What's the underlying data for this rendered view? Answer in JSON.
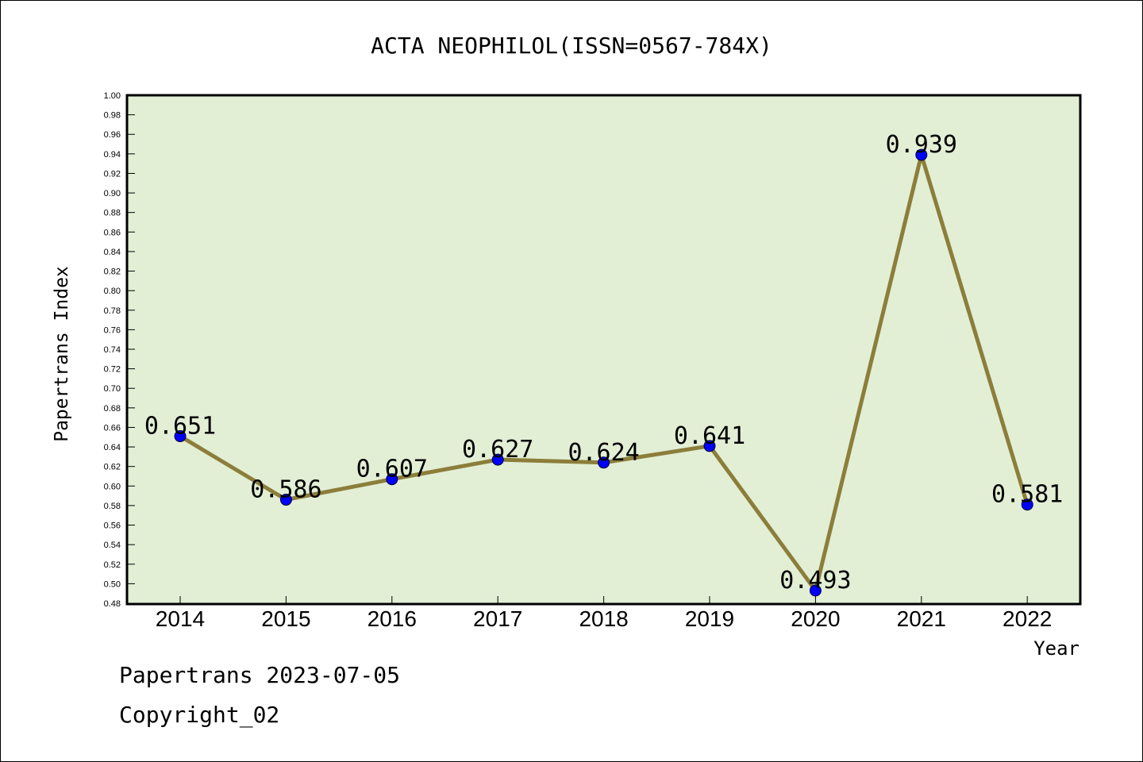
{
  "chart_data": {
    "type": "line",
    "title": "ACTA NEOPHILOL(ISSN=0567-784X)",
    "xlabel": "Year",
    "ylabel": "Papertrans Index",
    "categories": [
      "2014",
      "2015",
      "2016",
      "2017",
      "2018",
      "2019",
      "2020",
      "2021",
      "2022"
    ],
    "series": [
      {
        "values": [
          0.651,
          0.586,
          0.607,
          0.627,
          0.624,
          0.641,
          0.493,
          0.939,
          0.581
        ],
        "labels": [
          "0.651",
          "0.586",
          "0.607",
          "0.627",
          "0.624",
          "0.641",
          "0.493",
          "0.939",
          "0.581"
        ]
      }
    ],
    "ylim": [
      0.48,
      1.0
    ],
    "yticks": [
      "0.48",
      "0.50",
      "0.52",
      "0.54",
      "0.56",
      "0.58",
      "0.60",
      "0.62",
      "0.64",
      "0.66",
      "0.68",
      "0.70",
      "0.72",
      "0.74",
      "0.76",
      "0.78",
      "0.80",
      "0.82",
      "0.84",
      "0.86",
      "0.88",
      "0.90",
      "0.92",
      "0.94",
      "0.96",
      "0.98",
      "1.00"
    ],
    "grid": false,
    "colors": {
      "plot_background": "#e2efd5",
      "line": "#8c7e3a",
      "marker": "#0000ff"
    }
  },
  "footer": {
    "date_line": "Papertrans 2023-07-05",
    "copyright_line": "Copyright_02"
  }
}
